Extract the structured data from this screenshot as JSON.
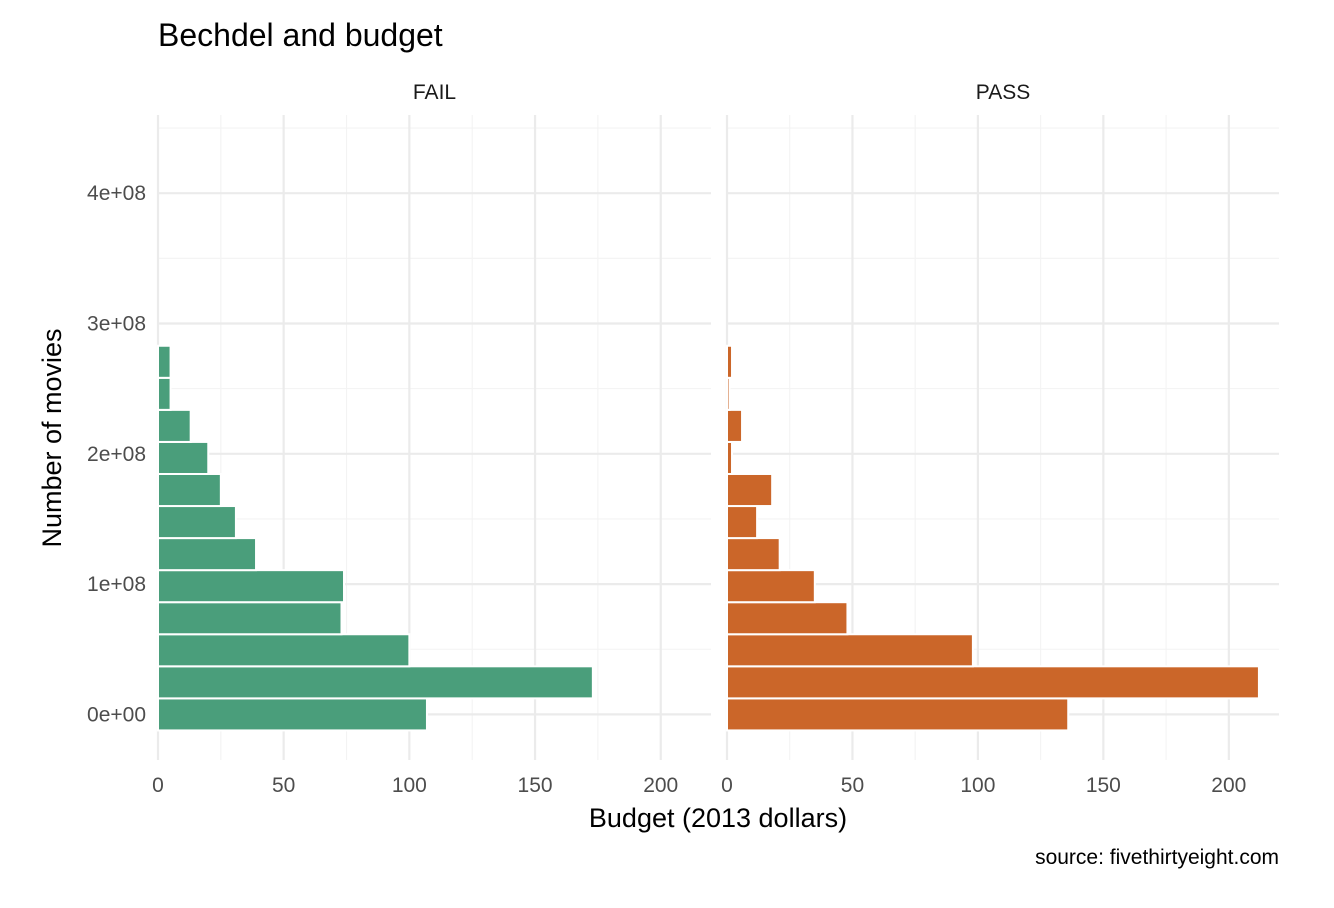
{
  "chart_data": {
    "type": "bar",
    "orientation": "horizontal",
    "title": "Bechdel and budget",
    "xlabel": "Budget (2013 dollars)",
    "ylabel": "Number of movies",
    "caption": "source: fivethirtyeight.com",
    "xlim": [
      0,
      220
    ],
    "ylim": [
      -35000000,
      460000000
    ],
    "x_ticks": [
      "0",
      "50",
      "100",
      "150",
      "200"
    ],
    "x_tick_values": [
      0,
      50,
      100,
      150,
      200
    ],
    "y_ticks": [
      "0e+00",
      "1e+08",
      "2e+08",
      "3e+08",
      "4e+08"
    ],
    "y_tick_values": [
      0,
      100000000,
      200000000,
      300000000,
      400000000
    ],
    "bin_width": 24600000,
    "bin_centers": [
      0,
      24600000,
      49200000,
      73800000,
      98400000,
      123000000,
      147600000,
      172200000,
      196800000,
      221400000,
      246000000,
      270600000
    ],
    "grid": true,
    "legend": "none",
    "panels": [
      {
        "name": "FAIL",
        "color": "#4a9e7b",
        "values": [
          107,
          173,
          100,
          73,
          74,
          39,
          31,
          25,
          20,
          13,
          5,
          5
        ]
      },
      {
        "name": "PASS",
        "color": "#cb6629",
        "values": [
          136,
          212,
          98,
          48,
          35,
          21,
          12,
          18,
          2,
          6,
          1,
          2
        ]
      }
    ]
  }
}
